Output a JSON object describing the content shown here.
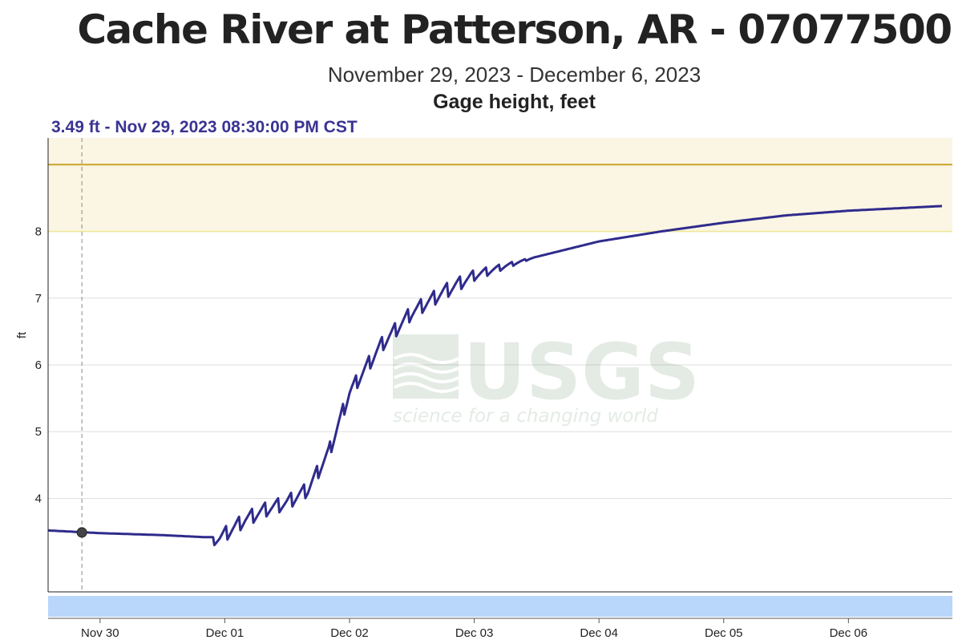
{
  "header": {
    "title": "Cache River at Patterson, AR - 07077500",
    "date_range": "November 29, 2023 - December 6, 2023",
    "parameter": "Gage height, feet",
    "readout": "3.49 ft - Nov 29, 2023 08:30:00 PM CST"
  },
  "watermark": {
    "brand": "USGS",
    "tagline": "science for a changing world"
  },
  "colors": {
    "series": "#2f2b8c",
    "band_fill": "#fbf5e4",
    "upper_line": "#c9a227",
    "lower_line": "#eee79a",
    "scrollbar": "#b9d6fb"
  },
  "chart_data": {
    "type": "line",
    "title": "Cache River at Patterson, AR - 07077500",
    "ylabel": "ft",
    "xlim": [
      "2023-11-29T14:00",
      "2023-12-06T20:00"
    ],
    "ylim": [
      2.6,
      9.4
    ],
    "yticks": [
      4,
      5,
      6,
      7,
      8
    ],
    "xticks": [
      "Nov 30",
      "Dec 01",
      "Dec 02",
      "Dec 03",
      "Dec 04",
      "Dec 05",
      "Dec 06"
    ],
    "grid": true,
    "reference_lines": [
      {
        "y": 9.0,
        "color": "#c9a227"
      },
      {
        "y": 8.0,
        "color": "#eee79a"
      }
    ],
    "shaded_band": [
      8.0,
      9.4
    ],
    "highlight": {
      "x": "2023-11-29T20:30",
      "y": 3.49
    },
    "series": [
      {
        "x": [
          "2023-11-29T14:00",
          "2023-11-30T00:00",
          "2023-11-30T12:00",
          "2023-11-30T20:00",
          "2023-11-30T23:00",
          "2023-12-01T04:00",
          "2023-12-01T08:00",
          "2023-12-01T12:00",
          "2023-12-01T16:00",
          "2023-12-01T20:00",
          "2023-12-02T00:00",
          "2023-12-02T06:00",
          "2023-12-02T12:00",
          "2023-12-02T18:00",
          "2023-12-03T00:00",
          "2023-12-03T12:00",
          "2023-12-04T00:00",
          "2023-12-04T12:00",
          "2023-12-05T00:00",
          "2023-12-05T12:00",
          "2023-12-06T00:00",
          "2023-12-06T18:00"
        ],
        "y": [
          3.52,
          3.48,
          3.45,
          3.42,
          3.42,
          3.7,
          3.85,
          3.95,
          4.15,
          4.7,
          5.6,
          6.3,
          6.8,
          7.1,
          7.35,
          7.62,
          7.85,
          8.0,
          8.13,
          8.24,
          8.31,
          8.38
        ]
      }
    ],
    "noise": {
      "period_hours": 2.5,
      "amplitude_ft": 0.12,
      "active_range": [
        "2023-11-30T22:00",
        "2023-12-03T12:00"
      ]
    }
  }
}
